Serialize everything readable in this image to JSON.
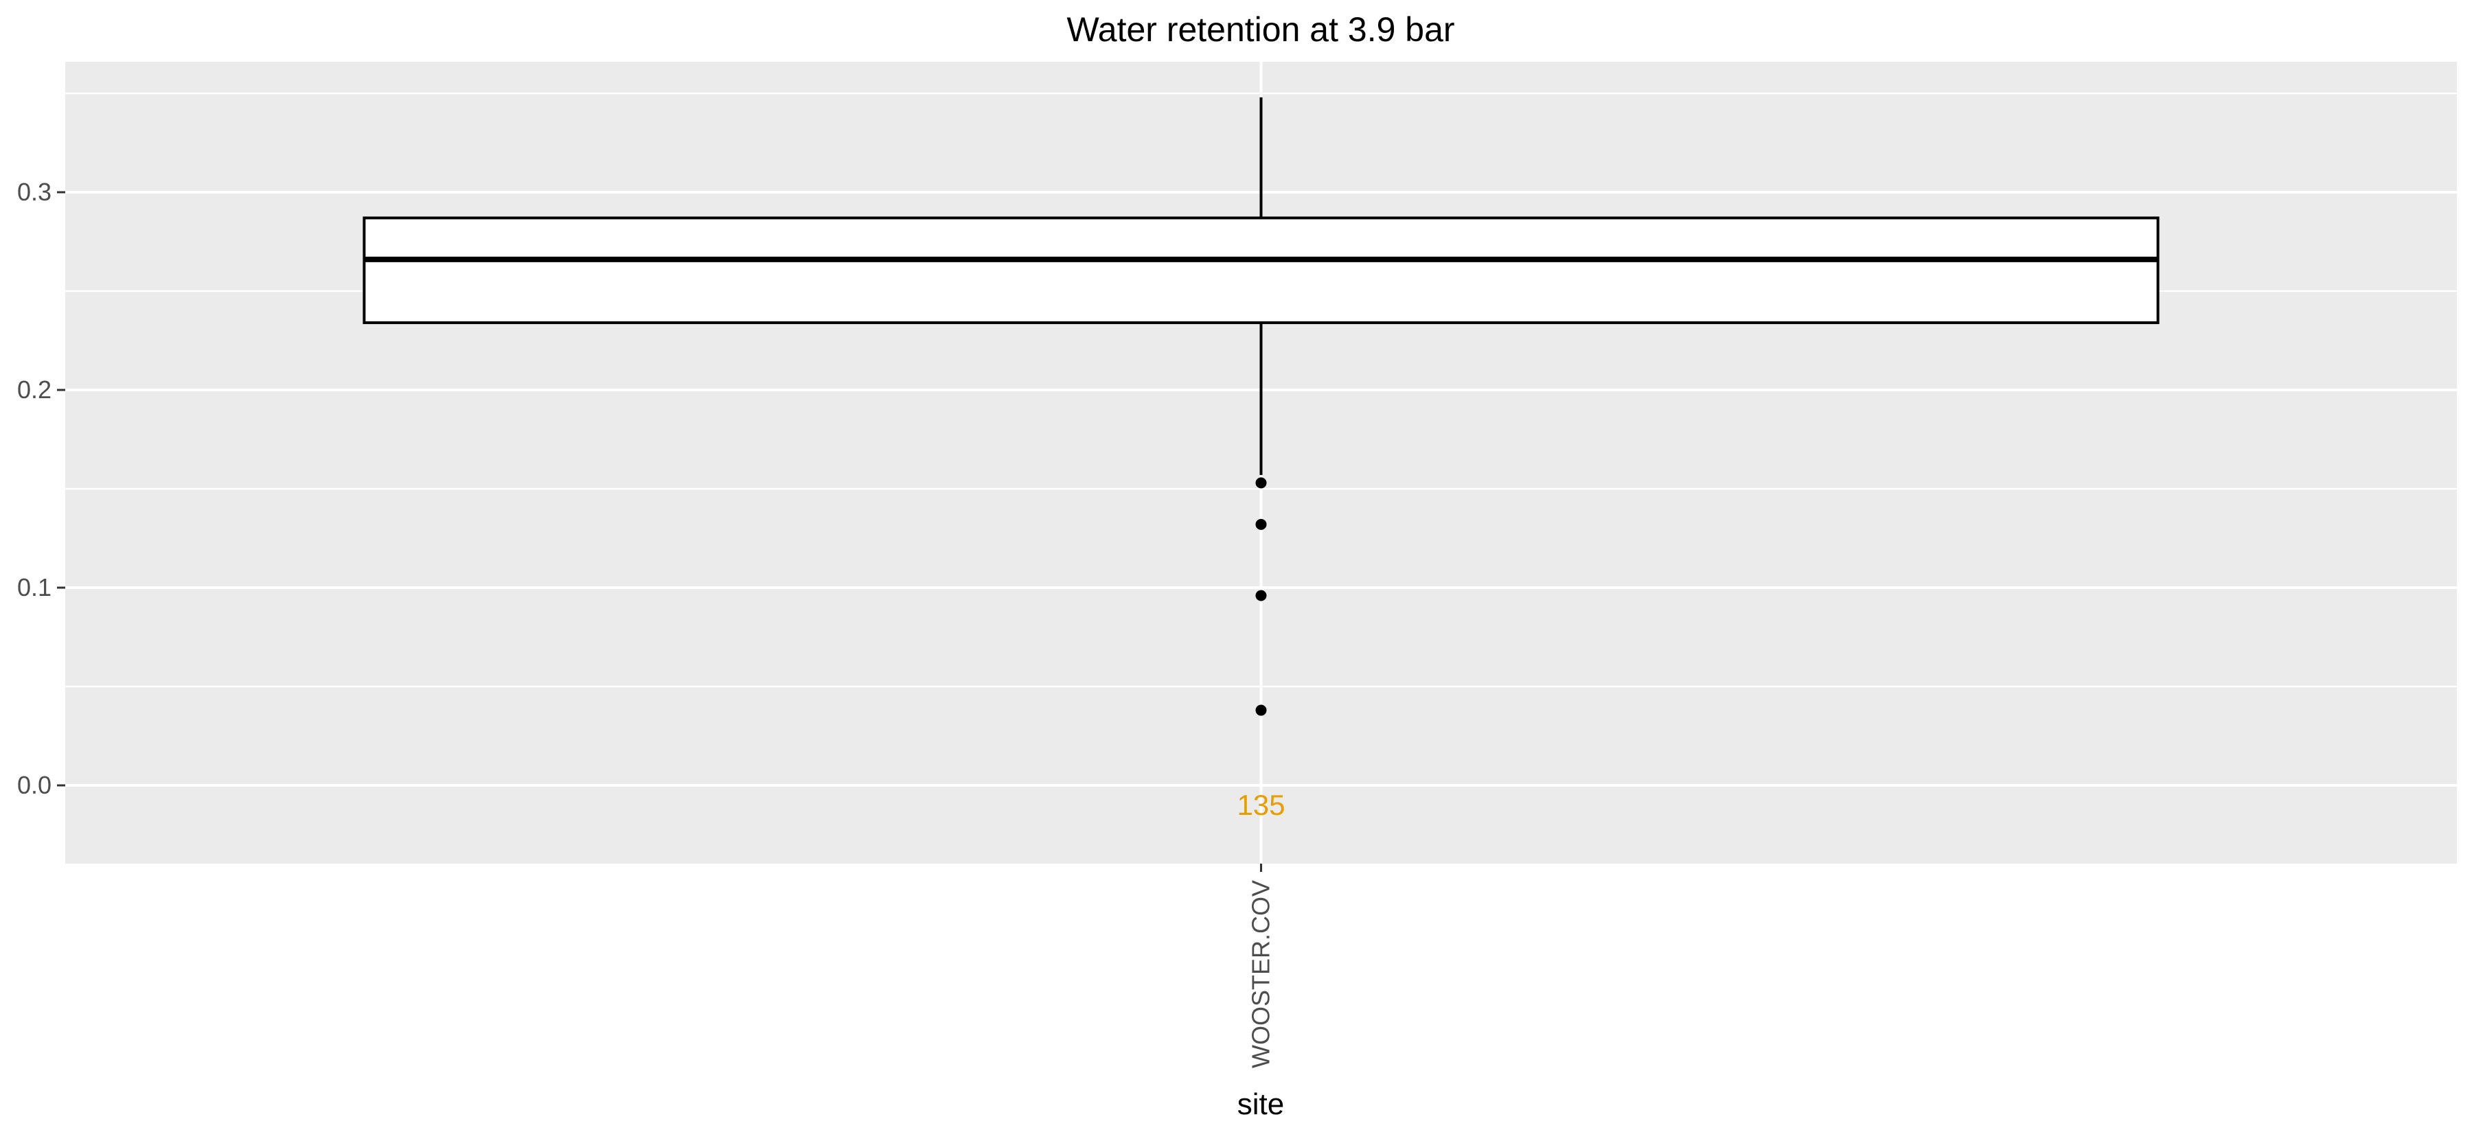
{
  "chart_data": {
    "type": "boxplot",
    "title": "Water retention at 3.9 bar",
    "xlabel": "site",
    "ylabel": "",
    "ylim": [
      -0.04,
      0.35
    ],
    "yticks": [
      0.0,
      0.1,
      0.2,
      0.3
    ],
    "ytick_labels": [
      "0.0",
      "0.1",
      "0.2",
      "0.3"
    ],
    "grid": true,
    "categories": [
      "WOOSTER.COV"
    ],
    "boxes": [
      {
        "category": "WOOSTER.COV",
        "whisker_low": 0.157,
        "q1": 0.234,
        "median": 0.266,
        "q3": 0.287,
        "whisker_high": 0.348,
        "outliers": [
          0.153,
          0.132,
          0.096,
          0.038
        ],
        "count_label": "135"
      }
    ],
    "colors": {
      "panel_background": "#ebebeb",
      "grid": "#ffffff",
      "box_fill": "#ffffff",
      "box_stroke": "#000000",
      "count_label": "#e69f00"
    }
  }
}
